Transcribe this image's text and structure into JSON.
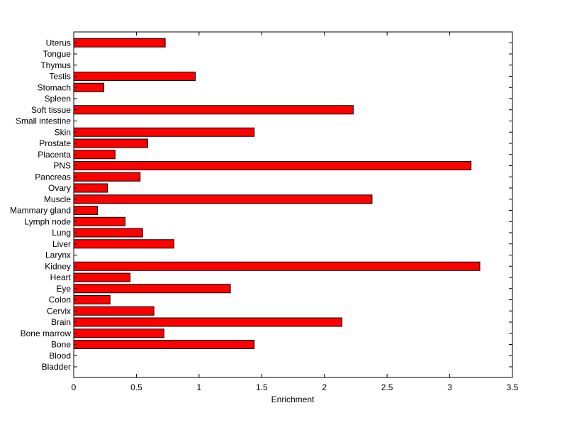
{
  "chart_data": {
    "type": "bar",
    "orientation": "horizontal",
    "title": "",
    "xlabel": "Enrichment",
    "ylabel": "",
    "xlim": [
      0,
      3.5
    ],
    "xticks": [
      "0",
      "0.5",
      "1",
      "1.5",
      "2",
      "2.5",
      "3",
      "3.5"
    ],
    "grid": false,
    "legend": "none",
    "bar_color": "#ff0000",
    "categories": [
      "Bladder",
      "Blood",
      "Bone",
      "Bone marrow",
      "Brain",
      "Cervix",
      "Colon",
      "Eye",
      "Heart",
      "Kidney",
      "Larynx",
      "Liver",
      "Lung",
      "Lymph node",
      "Mammary gland",
      "Muscle",
      "Ovary",
      "Pancreas",
      "PNS",
      "Placenta",
      "Prostate",
      "Skin",
      "Small intestine",
      "Soft tissue",
      "Spleen",
      "Stomach",
      "Testis",
      "Thymus",
      "Tongue",
      "Uterus"
    ],
    "values": [
      0,
      0,
      1.44,
      0.72,
      2.14,
      0.64,
      0.29,
      1.25,
      0.45,
      3.24,
      0,
      0.8,
      0.55,
      0.41,
      0.19,
      2.38,
      0.27,
      0.53,
      3.17,
      0.33,
      0.59,
      1.44,
      0,
      2.23,
      0,
      0.24,
      0.97,
      0,
      0,
      0.73
    ]
  }
}
